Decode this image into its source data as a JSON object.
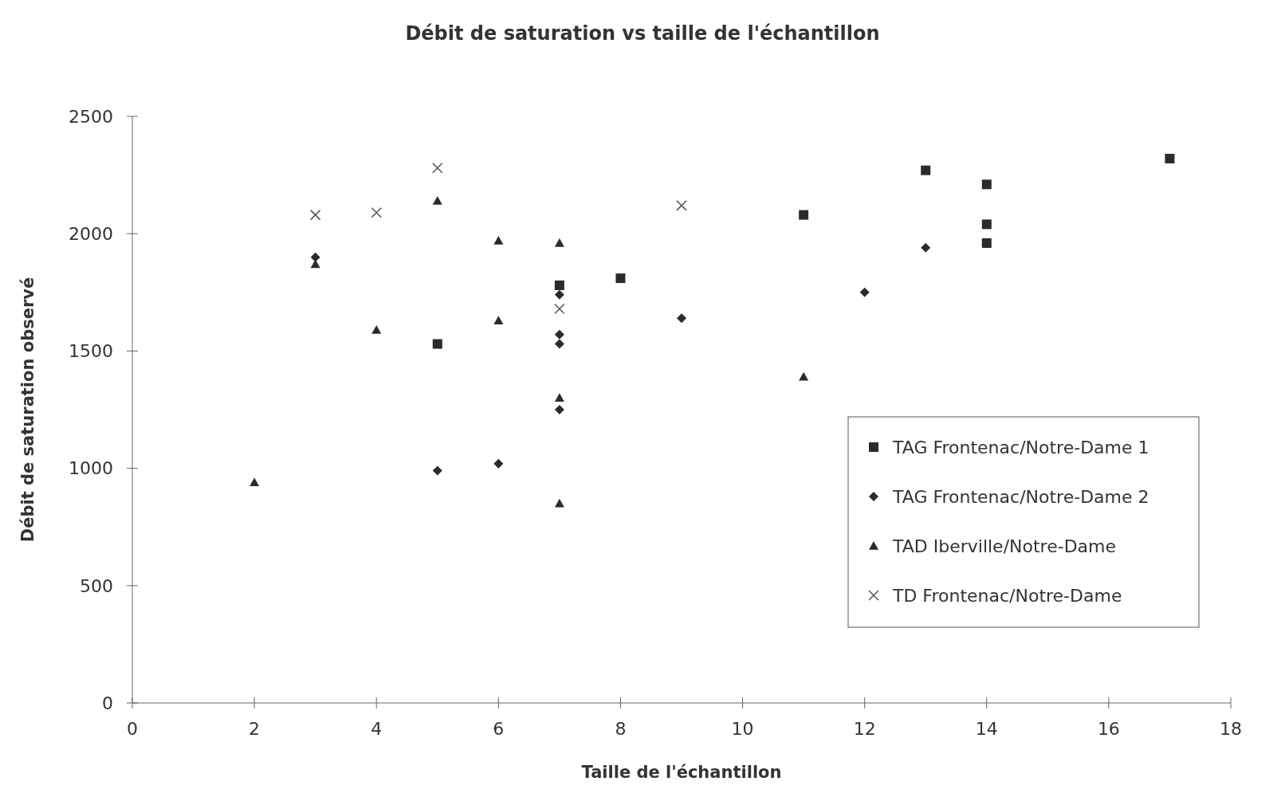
{
  "chart_data": {
    "type": "scatter",
    "title": "Débit de saturation vs taille de l'échantillon",
    "xlabel": "Taille de l'échantillon",
    "ylabel": "Débit de saturation observé",
    "xlim": [
      0,
      18
    ],
    "xticks": [
      0,
      2,
      4,
      6,
      8,
      10,
      12,
      14,
      16,
      18
    ],
    "ylim": [
      0,
      2500
    ],
    "yticks": [
      0,
      500,
      1000,
      1500,
      2000,
      2500
    ],
    "grid": false,
    "legend": "right",
    "series": [
      {
        "name": "TAG Frontenac/Notre-Dame 1",
        "color": "#2b2b2b",
        "marker": "square",
        "x": [
          5,
          7,
          8,
          11,
          13,
          14,
          14,
          14,
          17
        ],
        "values": [
          1530,
          1780,
          1810,
          2080,
          2270,
          2210,
          2040,
          1960,
          2320
        ]
      },
      {
        "name": "TAG Frontenac/Notre-Dame 2",
        "color": "#2b2b2b",
        "marker": "diamond",
        "x": [
          3,
          5,
          6,
          7,
          7,
          7,
          7,
          9,
          12,
          13
        ],
        "values": [
          1900,
          990,
          1020,
          1740,
          1570,
          1530,
          1250,
          1640,
          1750,
          1940
        ]
      },
      {
        "name": "TAD Iberville/Notre-Dame",
        "color": "#2b2b2b",
        "marker": "triangle",
        "x": [
          2,
          3,
          4,
          5,
          6,
          6,
          7,
          7,
          7,
          11
        ],
        "values": [
          940,
          1870,
          1590,
          2140,
          1970,
          1630,
          1960,
          1300,
          850,
          1390
        ]
      },
      {
        "name": "TD Frontenac/Notre-Dame",
        "color": "#555555",
        "marker": "cross",
        "x": [
          3,
          4,
          5,
          7,
          9
        ],
        "values": [
          2080,
          2090,
          2280,
          1680,
          2120
        ]
      }
    ]
  }
}
